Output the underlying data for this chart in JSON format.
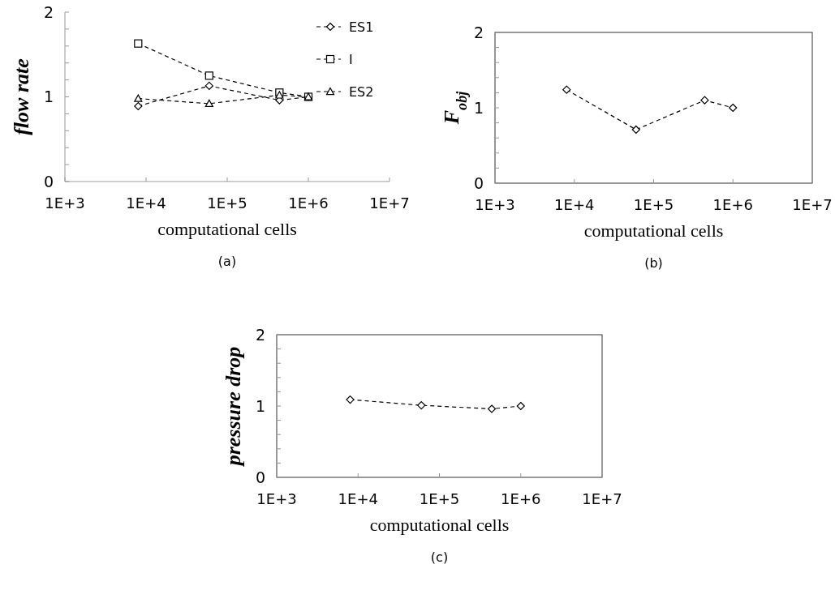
{
  "chart_data": [
    {
      "type": "line",
      "xlabel": "computational cells",
      "ylabel": "flow rate",
      "annotations": [
        "(a)"
      ],
      "log": "x",
      "xlim": [
        1000,
        10000000
      ],
      "xticks": [
        {
          "value": 1000,
          "label": "1E+3"
        },
        {
          "value": 10000,
          "label": "1E+4"
        },
        {
          "value": 100000,
          "label": "1E+5"
        },
        {
          "value": 1000000,
          "label": "1E+6"
        },
        {
          "value": 10000000,
          "label": "1E+7"
        }
      ],
      "ylim": [
        0,
        2
      ],
      "yticks": [
        0,
        {
          "value": 0.2,
          "label": null
        },
        {
          "value": 0.4,
          "label": null
        },
        {
          "value": 0.6,
          "label": null
        },
        {
          "value": 0.8,
          "label": null
        },
        1,
        {
          "value": 1.2,
          "label": null
        },
        {
          "value": 1.4,
          "label": null
        },
        {
          "value": 1.6,
          "label": null
        },
        {
          "value": 1.8,
          "label": null
        },
        2
      ],
      "grid": false,
      "legend": "top right",
      "line_style": "dashed",
      "x": [
        8000,
        60000,
        440000,
        1000000
      ],
      "series": [
        {
          "name": "ES1",
          "color": "#000000",
          "marker": "diamond",
          "values": [
            0.89,
            1.13,
            0.96,
            1.0
          ]
        },
        {
          "name": "I",
          "color": "#000000",
          "marker": "square",
          "values": [
            1.63,
            1.25,
            1.05,
            1.0
          ]
        },
        {
          "name": "ES2",
          "color": "#000000",
          "marker": "triangle",
          "values": [
            0.98,
            0.92,
            1.02,
            1.0
          ]
        }
      ]
    },
    {
      "type": "line",
      "xlabel": "computational cells",
      "ylabel": "F$_{obj}$",
      "annotations": [
        "(b)"
      ],
      "log": "x",
      "xlim": [
        1000,
        10000000
      ],
      "xticks": [
        {
          "value": 1000,
          "label": "1E+3"
        },
        {
          "value": 10000,
          "label": "1E+4"
        },
        {
          "value": 100000,
          "label": "1E+5"
        },
        {
          "value": 1000000,
          "label": "1E+6"
        },
        {
          "value": 10000000,
          "label": "1E+7"
        }
      ],
      "ylim": [
        0,
        2
      ],
      "yticks": [
        0,
        {
          "value": 0.2,
          "label": null
        },
        {
          "value": 0.4,
          "label": null
        },
        {
          "value": 0.6,
          "label": null
        },
        {
          "value": 0.8,
          "label": null
        },
        1,
        {
          "value": 1.2,
          "label": null
        },
        {
          "value": 1.4,
          "label": null
        },
        {
          "value": 1.6,
          "label": null
        },
        {
          "value": 1.8,
          "label": null
        },
        2
      ],
      "grid": false,
      "legend": false,
      "line_style": "dashed",
      "marker": "diamond",
      "x": [
        8000,
        60000,
        440000,
        1000000
      ],
      "series": [
        {
          "color": "#000000",
          "values": [
            1.24,
            0.71,
            1.1,
            1.0
          ]
        }
      ]
    },
    {
      "type": "line",
      "xlabel": "computational cells",
      "ylabel": "pressure drop",
      "annotations": [
        "(c)"
      ],
      "log": "x",
      "xlim": [
        1000,
        10000000
      ],
      "xticks": [
        {
          "value": 1000,
          "label": "1E+3"
        },
        {
          "value": 10000,
          "label": "1E+4"
        },
        {
          "value": 100000,
          "label": "1E+5"
        },
        {
          "value": 1000000,
          "label": "1E+6"
        },
        {
          "value": 10000000,
          "label": "1E+7"
        }
      ],
      "ylim": [
        0,
        2
      ],
      "yticks": [
        0,
        {
          "value": 0.2,
          "label": null
        },
        {
          "value": 0.4,
          "label": null
        },
        {
          "value": 0.6,
          "label": null
        },
        {
          "value": 0.8,
          "label": null
        },
        1,
        {
          "value": 1.2,
          "label": null
        },
        {
          "value": 1.4,
          "label": null
        },
        {
          "value": 1.6,
          "label": null
        },
        {
          "value": 1.8,
          "label": null
        },
        2
      ],
      "grid": false,
      "legend": false,
      "line_style": "dashed",
      "marker": "diamond",
      "x": [
        8000,
        60000,
        440000,
        1000000
      ],
      "series": [
        {
          "color": "#000000",
          "values": [
            1.09,
            1.01,
            0.96,
            1.0
          ]
        }
      ]
    }
  ]
}
